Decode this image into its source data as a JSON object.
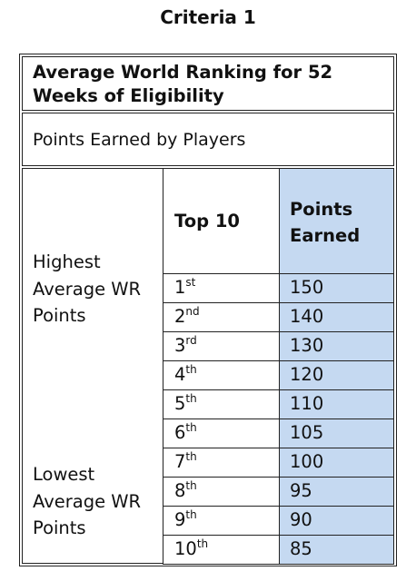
{
  "title": "Criteria 1",
  "table": {
    "header": "Average World Ranking for 52 Weeks of Eligibility",
    "subheader": "Points Earned by Players",
    "left_top_label": "Highest Average WR Points",
    "left_bottom_label": "Lowest Average WR Points",
    "col_rank_header": "Top 10",
    "col_points_header": "Points Earned",
    "colors": {
      "points_column_fill": "#c5d9f1",
      "border": "#222222"
    },
    "rows": [
      {
        "rank": "1",
        "suffix": "st",
        "points": "150"
      },
      {
        "rank": "2",
        "suffix": "nd",
        "points": "140"
      },
      {
        "rank": "3",
        "suffix": "rd",
        "points": "130"
      },
      {
        "rank": "4",
        "suffix": "th",
        "points": "120"
      },
      {
        "rank": "5",
        "suffix": "th",
        "points": "110"
      },
      {
        "rank": "6",
        "suffix": "th",
        "points": "105"
      },
      {
        "rank": "7",
        "suffix": "th",
        "points": "100"
      },
      {
        "rank": "8",
        "suffix": "th",
        "points": "95"
      },
      {
        "rank": "9",
        "suffix": "th",
        "points": "90"
      },
      {
        "rank": "10",
        "suffix": "th",
        "points": "85"
      }
    ]
  }
}
